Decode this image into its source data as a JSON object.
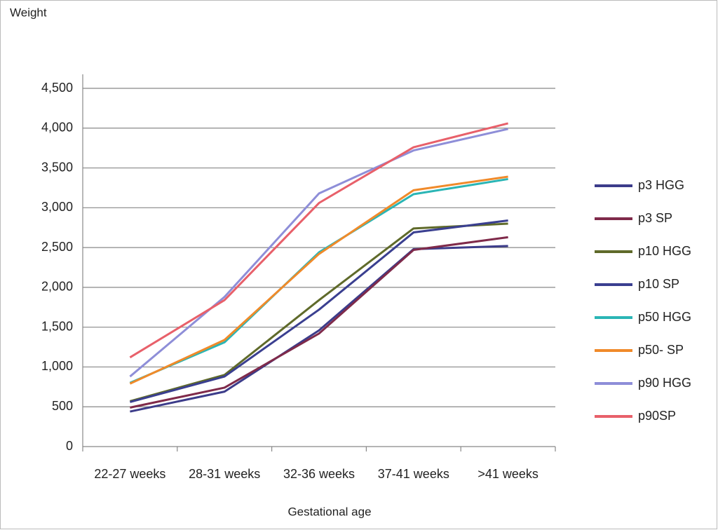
{
  "chart_data": {
    "type": "line",
    "ylabel": "Weight",
    "xlabel": "Gestational age",
    "categories": [
      "22-27 weeks",
      "28-31 weeks",
      "32-36 weeks",
      "37-41 weeks",
      ">41 weeks"
    ],
    "series": [
      {
        "name": "p3 HGG",
        "color": "#3c3c8a",
        "values": [
          440,
          690,
          1460,
          2480,
          2520
        ]
      },
      {
        "name": "p3 SP",
        "color": "#7f2a4a",
        "values": [
          490,
          740,
          1420,
          2470,
          2630
        ]
      },
      {
        "name": "p10 HGG",
        "color": "#5f6a2a",
        "values": [
          570,
          900,
          1840,
          2740,
          2800
        ]
      },
      {
        "name": "p10 SP",
        "color": "#3a3f90",
        "values": [
          560,
          880,
          1720,
          2690,
          2840
        ]
      },
      {
        "name": "p50 HGG",
        "color": "#2ab5b5",
        "values": [
          800,
          1310,
          2440,
          3170,
          3360
        ]
      },
      {
        "name": "p50- SP",
        "color": "#f08a2a",
        "values": [
          790,
          1340,
          2420,
          3220,
          3390
        ]
      },
      {
        "name": "p90 HGG",
        "color": "#8e8ed8",
        "values": [
          880,
          1880,
          3180,
          3720,
          3990
        ]
      },
      {
        "name": "p90SP",
        "color": "#e8606a",
        "values": [
          1120,
          1840,
          3060,
          3760,
          4060
        ]
      }
    ],
    "ylim": [
      0,
      4500
    ],
    "yticks": [
      0,
      500,
      {
        "value": 1000,
        "label": "1,000"
      },
      {
        "value": 1500,
        "label": "1,500"
      },
      {
        "value": 2000,
        "label": "2,000"
      },
      {
        "value": 2500,
        "label": "2,500"
      },
      {
        "value": 3000,
        "label": "3,000"
      },
      {
        "value": 3500,
        "label": "3,500"
      },
      {
        "value": 4000,
        "label": "4,000"
      },
      {
        "value": 4500,
        "label": "4,500"
      }
    ],
    "grid": true,
    "legend_position": "right"
  }
}
